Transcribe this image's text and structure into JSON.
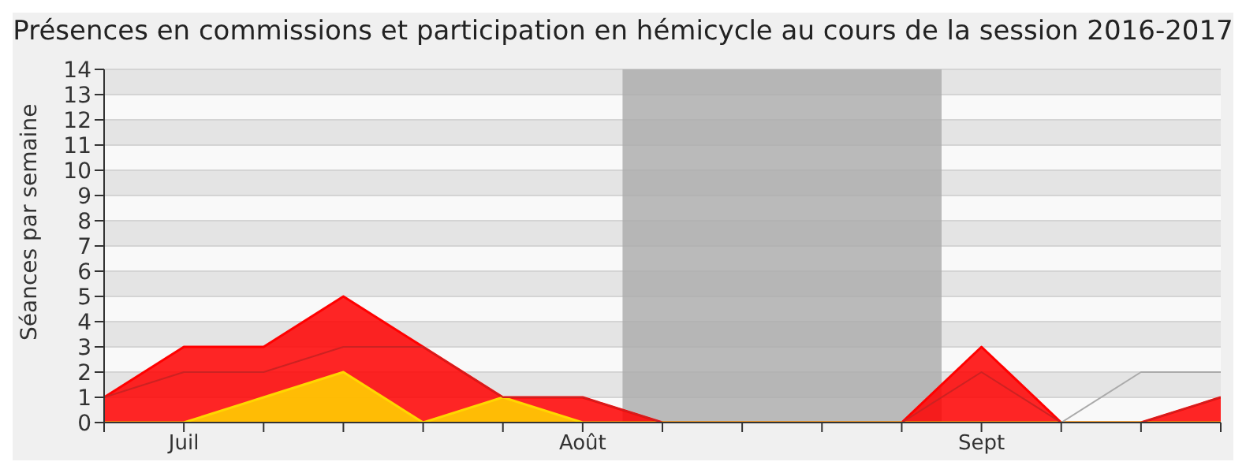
{
  "chart_data": {
    "type": "area",
    "title": "Présences en commissions et participation en hémicycle au cours de la session 2016-2017",
    "ylabel": "Séances par semaine",
    "categories": [
      null,
      "Juil",
      null,
      null,
      null,
      null,
      "Août",
      null,
      null,
      null,
      null,
      "Sept",
      null,
      null,
      null
    ],
    "ylim": [
      0,
      14
    ],
    "yticks": [
      0,
      1,
      2,
      3,
      4,
      5,
      6,
      7,
      8,
      9,
      10,
      11,
      12,
      13,
      14
    ],
    "series": [
      {
        "color": "#ff0000",
        "values": [
          1,
          3,
          3,
          5,
          3,
          1,
          1,
          0,
          0,
          0,
          0,
          3,
          0,
          0,
          1
        ]
      },
      {
        "type": "line",
        "color": "#cc2222",
        "values": [
          1,
          2,
          2,
          3,
          3,
          1,
          1,
          0,
          0,
          0,
          0,
          2,
          0,
          0,
          1
        ]
      },
      {
        "color": "#ffd700",
        "values": [
          0,
          0,
          1,
          2,
          0,
          1,
          0,
          0,
          0,
          0,
          0,
          0,
          0,
          0,
          0
        ]
      },
      {
        "type": "line",
        "color": "#aaaaaa",
        "values": [
          null,
          null,
          null,
          null,
          null,
          null,
          null,
          null,
          null,
          null,
          null,
          null,
          0,
          2,
          2
        ]
      }
    ],
    "bands": [
      {
        "axis": "x",
        "from": "Août",
        "to": "Sept",
        "color": "#aaaaaa"
      }
    ],
    "grid": "y",
    "legend": false
  }
}
